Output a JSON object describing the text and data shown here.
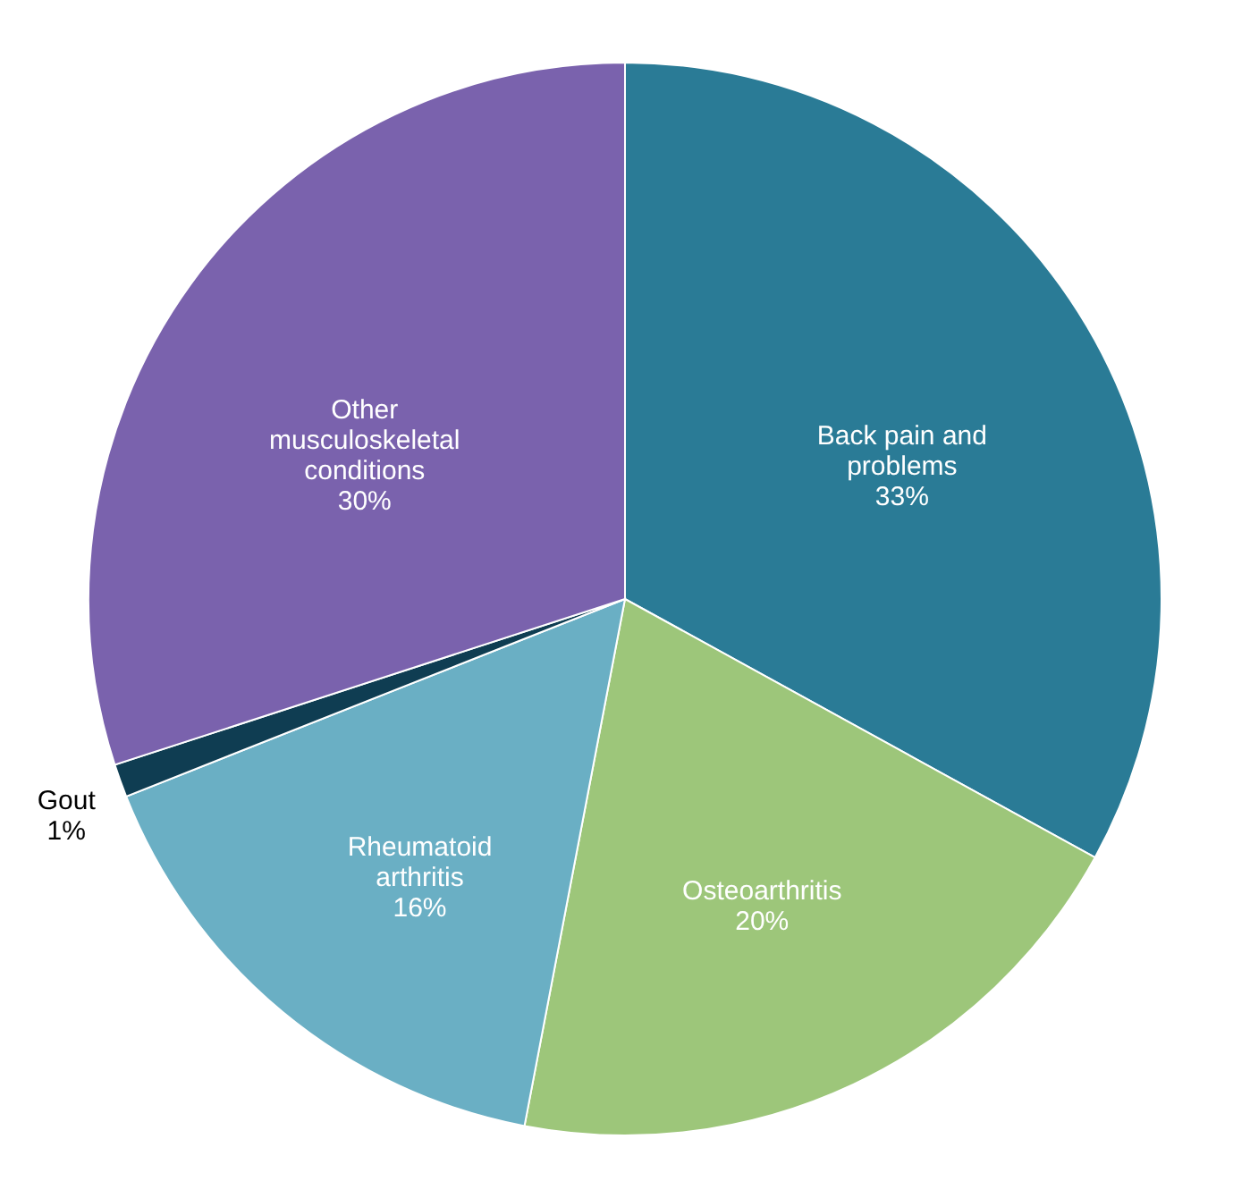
{
  "chart_data": {
    "type": "pie",
    "categories": [
      "Back pain and problems",
      "Osteoarthritis",
      "Rheumatoid arthritis",
      "Gout",
      "Other musculoskeletal conditions"
    ],
    "values": [
      33,
      20,
      16,
      1,
      30
    ],
    "value_labels": [
      "33%",
      "20%",
      "16%",
      "1%",
      "30%"
    ],
    "colors": [
      "#2a7b96",
      "#9dc67a",
      "#6aafc4",
      "#0f3d52",
      "#7a62ad"
    ],
    "legend": false
  }
}
